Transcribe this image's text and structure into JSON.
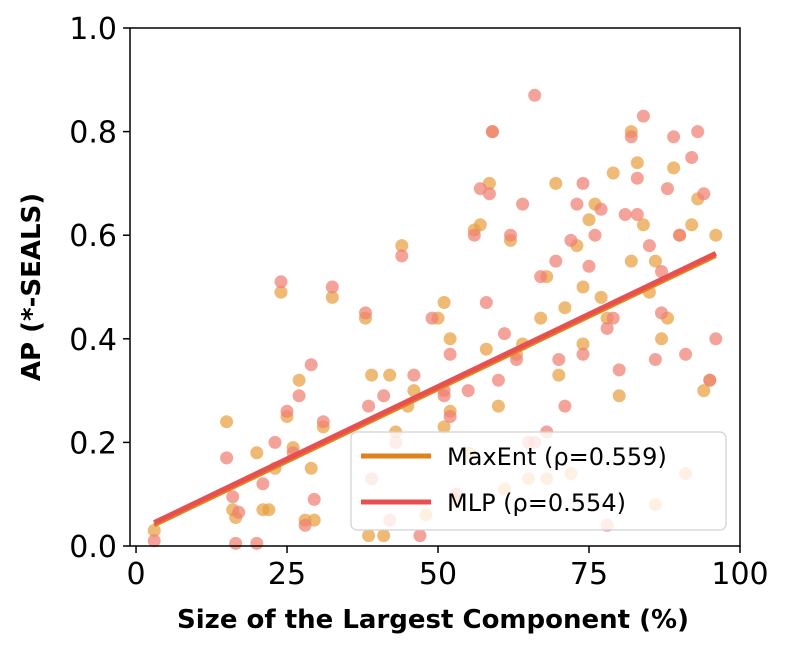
{
  "chart_data": {
    "type": "scatter",
    "xlabel": "Size of the Largest Component (%)",
    "ylabel": "AP (*-SEALS)",
    "xlim": [
      -1,
      100
    ],
    "ylim": [
      0.0,
      1.0
    ],
    "xticks": [
      "0",
      "25",
      "50",
      "75",
      "100"
    ],
    "yticks": [
      "0.0",
      "0.2",
      "0.4",
      "0.6",
      "0.8",
      "1.0"
    ],
    "grid": false,
    "legend_position": "lower-right",
    "series": [
      {
        "name": "MaxEnt (ρ=0.559)",
        "color": "#e8a040",
        "line_color": "#e0821a",
        "fit": {
          "x": [
            3,
            96
          ],
          "y": [
            0.04,
            0.56
          ]
        },
        "points": [
          [
            3,
            0.03
          ],
          [
            15,
            0.24
          ],
          [
            16,
            0.07
          ],
          [
            16.5,
            0.055
          ],
          [
            20,
            0.18
          ],
          [
            21,
            0.07
          ],
          [
            22,
            0.07
          ],
          [
            23,
            0.15
          ],
          [
            24,
            0.49
          ],
          [
            25,
            0.25
          ],
          [
            26,
            0.19
          ],
          [
            27,
            0.32
          ],
          [
            28,
            0.05
          ],
          [
            29,
            0.15
          ],
          [
            29.5,
            0.05
          ],
          [
            31,
            0.23
          ],
          [
            32.5,
            0.48
          ],
          [
            38,
            0.44
          ],
          [
            38.5,
            0.02
          ],
          [
            39,
            0.33
          ],
          [
            41,
            0.02
          ],
          [
            42,
            0.33
          ],
          [
            43,
            0.22
          ],
          [
            44,
            0.58
          ],
          [
            46,
            0.3
          ],
          [
            48,
            0.06
          ],
          [
            50,
            0.44
          ],
          [
            51,
            0.47
          ],
          [
            51,
            0.23
          ],
          [
            52,
            0.4
          ],
          [
            52,
            0.26
          ],
          [
            53,
            0.09
          ],
          [
            55,
            0.18
          ],
          [
            56,
            0.61
          ],
          [
            57,
            0.62
          ],
          [
            58,
            0.38
          ],
          [
            58.5,
            0.7
          ],
          [
            59,
            0.8
          ],
          [
            60,
            0.27
          ],
          [
            61,
            0.11
          ],
          [
            62,
            0.59
          ],
          [
            63,
            0.37
          ],
          [
            64,
            0.39
          ],
          [
            65,
            0.13
          ],
          [
            67,
            0.44
          ],
          [
            68,
            0.13
          ],
          [
            69.5,
            0.7
          ],
          [
            70,
            0.33
          ],
          [
            71,
            0.46
          ],
          [
            72,
            0.14
          ],
          [
            73,
            0.58
          ],
          [
            74,
            0.5
          ],
          [
            75,
            0.63
          ],
          [
            76,
            0.66
          ],
          [
            77,
            0.48
          ],
          [
            78,
            0.44
          ],
          [
            79,
            0.72
          ],
          [
            80,
            0.29
          ],
          [
            82,
            0.8
          ],
          [
            83,
            0.74
          ],
          [
            84,
            0.62
          ],
          [
            85,
            0.49
          ],
          [
            86,
            0.55
          ],
          [
            87,
            0.4
          ],
          [
            88,
            0.44
          ],
          [
            89,
            0.73
          ],
          [
            90,
            0.6
          ],
          [
            91,
            0.14
          ],
          [
            92,
            0.62
          ],
          [
            93,
            0.67
          ],
          [
            94,
            0.3
          ],
          [
            95,
            0.32
          ],
          [
            96,
            0.6
          ],
          [
            68,
            0.52
          ],
          [
            74,
            0.39
          ],
          [
            86,
            0.08
          ],
          [
            82,
            0.55
          ],
          [
            45,
            0.27
          ]
        ]
      },
      {
        "name": "MLP (ρ=0.554)",
        "color": "#f07f74",
        "line_color": "#e85050",
        "fit": {
          "x": [
            3,
            96
          ],
          "y": [
            0.045,
            0.565
          ]
        },
        "points": [
          [
            3,
            0.01
          ],
          [
            15,
            0.17
          ],
          [
            16,
            0.095
          ],
          [
            16.5,
            0.005
          ],
          [
            17,
            0.065
          ],
          [
            20,
            0.005
          ],
          [
            21,
            0.12
          ],
          [
            23,
            0.2
          ],
          [
            24,
            0.51
          ],
          [
            25,
            0.26
          ],
          [
            26,
            0.18
          ],
          [
            27,
            0.29
          ],
          [
            28,
            0.04
          ],
          [
            29,
            0.35
          ],
          [
            29.5,
            0.09
          ],
          [
            31,
            0.24
          ],
          [
            32.5,
            0.5
          ],
          [
            38,
            0.45
          ],
          [
            38.5,
            0.27
          ],
          [
            39,
            0.13
          ],
          [
            41,
            0.29
          ],
          [
            42,
            0.05
          ],
          [
            43,
            0.2
          ],
          [
            44,
            0.56
          ],
          [
            46,
            0.33
          ],
          [
            47,
            0.02
          ],
          [
            49,
            0.44
          ],
          [
            51,
            0.3
          ],
          [
            51,
            0.29
          ],
          [
            52,
            0.37
          ],
          [
            52,
            0.25
          ],
          [
            53,
            0.1
          ],
          [
            55,
            0.3
          ],
          [
            56,
            0.6
          ],
          [
            57,
            0.69
          ],
          [
            58,
            0.47
          ],
          [
            58.5,
            0.68
          ],
          [
            59,
            0.8
          ],
          [
            60,
            0.32
          ],
          [
            61,
            0.41
          ],
          [
            62,
            0.6
          ],
          [
            63,
            0.36
          ],
          [
            64,
            0.66
          ],
          [
            65,
            0.2
          ],
          [
            66,
            0.87
          ],
          [
            67,
            0.52
          ],
          [
            68,
            0.22
          ],
          [
            69.5,
            0.55
          ],
          [
            70,
            0.36
          ],
          [
            71,
            0.27
          ],
          [
            72,
            0.59
          ],
          [
            73,
            0.66
          ],
          [
            74,
            0.37
          ],
          [
            75,
            0.54
          ],
          [
            76,
            0.6
          ],
          [
            77,
            0.65
          ],
          [
            78,
            0.42
          ],
          [
            79,
            0.44
          ],
          [
            80,
            0.34
          ],
          [
            81,
            0.64
          ],
          [
            82,
            0.79
          ],
          [
            83,
            0.71
          ],
          [
            84,
            0.83
          ],
          [
            85,
            0.58
          ],
          [
            86,
            0.36
          ],
          [
            87,
            0.45
          ],
          [
            88,
            0.69
          ],
          [
            89,
            0.79
          ],
          [
            90,
            0.6
          ],
          [
            91,
            0.37
          ],
          [
            92,
            0.75
          ],
          [
            93,
            0.8
          ],
          [
            94,
            0.68
          ],
          [
            95,
            0.32
          ],
          [
            96,
            0.4
          ],
          [
            78,
            0.04
          ],
          [
            83,
            0.64
          ],
          [
            66,
            0.2
          ],
          [
            74,
            0.7
          ],
          [
            87,
            0.53
          ]
        ]
      }
    ]
  }
}
